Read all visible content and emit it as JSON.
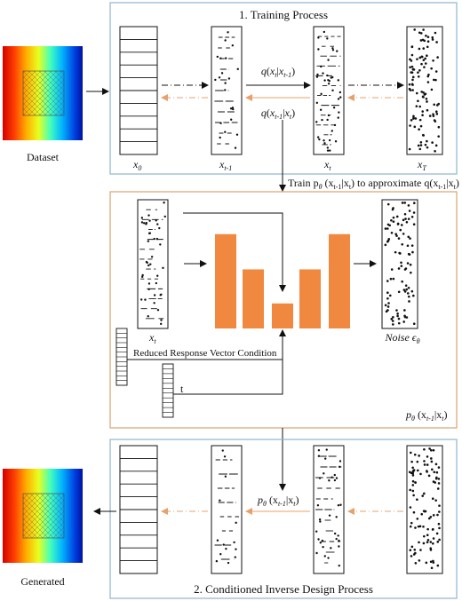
{
  "training": {
    "title": "1. Training Process",
    "labels": {
      "x0": "x",
      "x0_sub": "0",
      "xt1": "x",
      "xt1_sub": "t-1",
      "xt": "x",
      "xt_sub": "t",
      "xT": "x",
      "xT_sub": "T"
    },
    "forward": {
      "q": "q",
      "arg": "x",
      "arg_sub": "t",
      "cond": "x",
      "cond_sub": "t-1"
    },
    "reverse": {
      "q": "q",
      "arg": "x",
      "arg_sub": "t-1",
      "cond": "x",
      "cond_sub": "t"
    }
  },
  "dataset_label": "Dataset",
  "train_caption": {
    "prefix": "Train p",
    "theta": "θ",
    "mid1": " (x",
    "mid1_sub": "t-1",
    "mid2": "|x",
    "mid2_sub": "t",
    "mid3": ") to approximate q(x",
    "mid3_sub": "t-1",
    "mid4": "|x",
    "mid4_sub": "t",
    "end": ")"
  },
  "network": {
    "input_label": "x",
    "input_sub": "t",
    "noise_label": "Noise ϵ",
    "noise_sub": "θ",
    "condition_label": "Reduced Response Vector Condition",
    "t_label": "t",
    "model_label": {
      "p": "p",
      "theta": "θ",
      "mid": " (x",
      "sub1": "t-1",
      "bar": "|x",
      "sub2": "t",
      "end": ")"
    },
    "bar_heights": [
      0.83,
      0.52,
      0.22,
      0.52,
      0.83
    ]
  },
  "inference": {
    "title": "2. Conditioned Inverse Design Process",
    "step_label": {
      "p": "p",
      "theta": "θ",
      "mid": " (x",
      "sub1": "t-1",
      "bar": "|x",
      "sub2": "t",
      "end": ")"
    }
  },
  "generated_label": "Generated",
  "colors": {
    "frame_blue": "#8fb5cf",
    "frame_orange": "#d9a36d",
    "bar_orange": "#f0883f",
    "arrow_orange": "#e9a06b"
  }
}
